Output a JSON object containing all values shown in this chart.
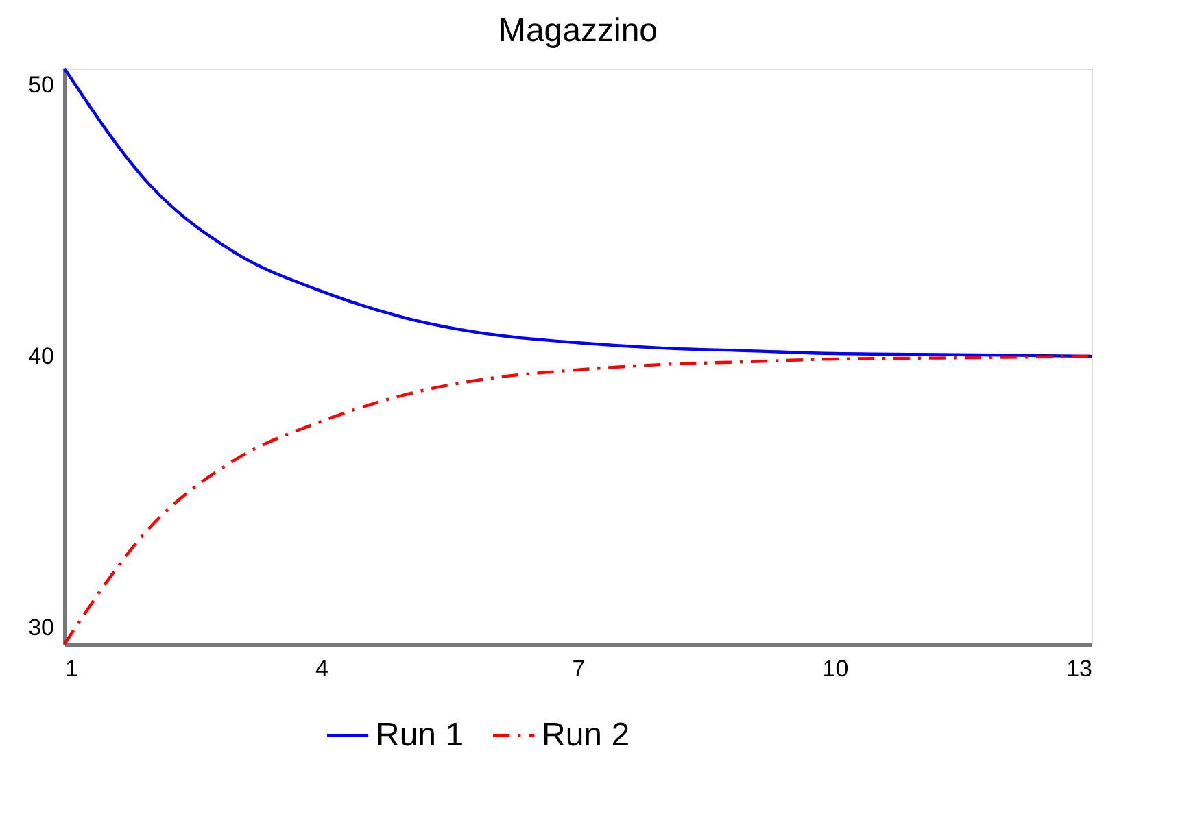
{
  "chart_data": {
    "type": "line",
    "title": "Magazzino",
    "x": [
      1,
      2,
      3,
      4,
      5,
      6,
      7,
      8,
      9,
      10,
      11,
      12,
      13
    ],
    "series": [
      {
        "name": "Run 1",
        "color": "#0000ff",
        "line_style": "solid",
        "values": [
          50.6,
          46.3,
          43.8,
          42.4,
          41.4,
          40.8,
          40.5,
          40.3,
          40.2,
          40.1,
          40.07,
          40.04,
          40.0
        ]
      },
      {
        "name": "Run 2",
        "color": "#ff0000",
        "line_style": "dashed",
        "values": [
          29.4,
          33.7,
          36.2,
          37.6,
          38.6,
          39.2,
          39.5,
          39.7,
          39.8,
          39.9,
          39.93,
          39.96,
          40.0
        ]
      }
    ],
    "xlim": [
      1,
      13
    ],
    "xticks": [
      1,
      4,
      7,
      10,
      13
    ],
    "ylim": [
      29.4,
      50.6
    ],
    "yticks": [
      30,
      40,
      50
    ],
    "grid": false,
    "legend": "bottom",
    "marker": "none"
  }
}
